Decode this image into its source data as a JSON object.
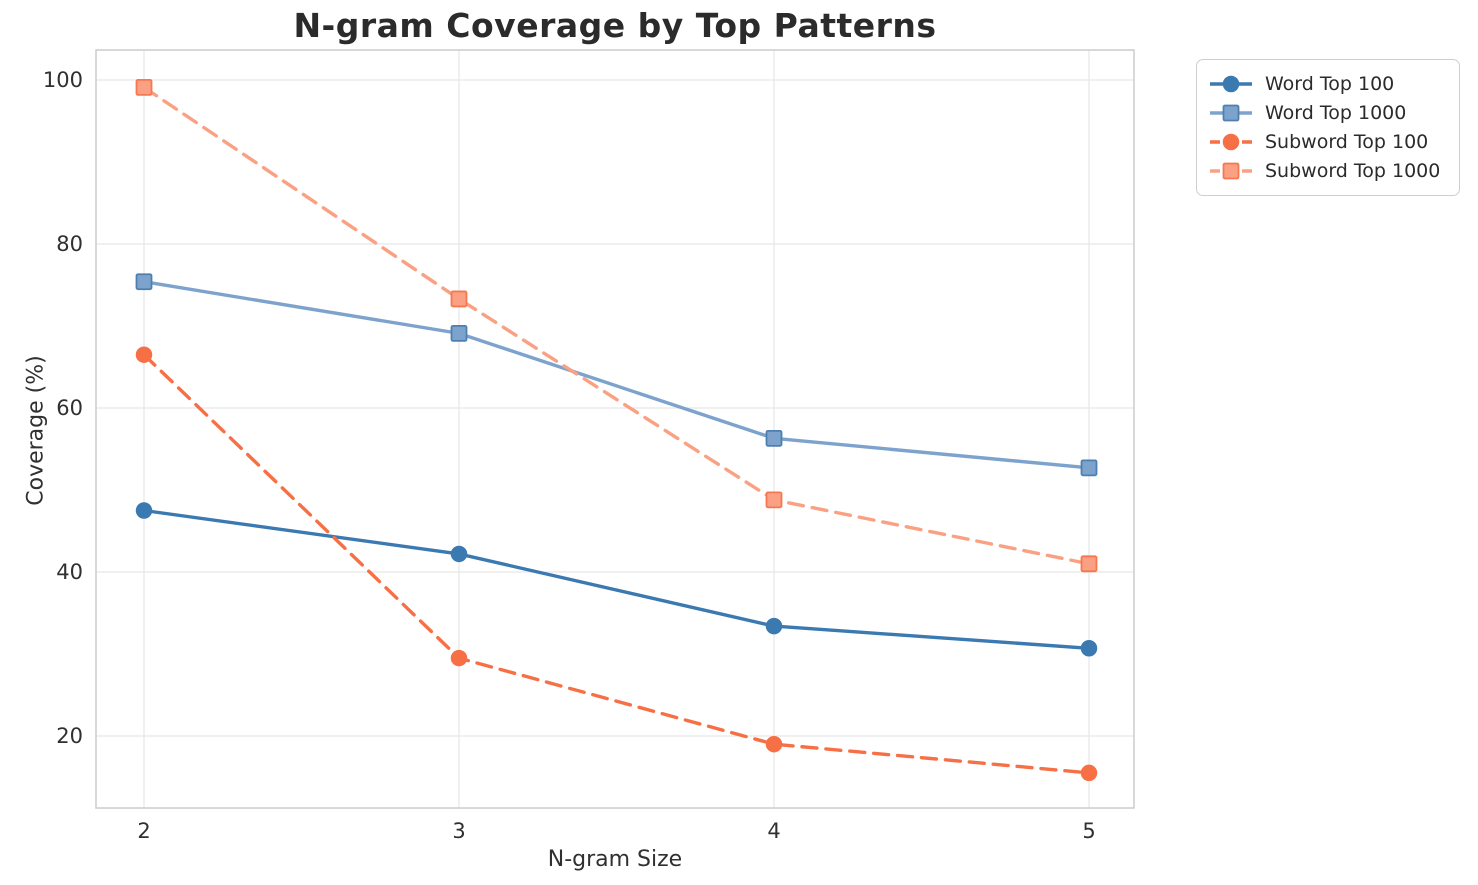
{
  "figure": {
    "title": "N-gram Coverage by Top Patterns",
    "xlabel": "N-gram Size",
    "ylabel": "Coverage (%)"
  },
  "chart_data": {
    "type": "line",
    "title": "N-gram Coverage by Top Patterns",
    "xlabel": "N-gram Size",
    "ylabel": "Coverage (%)",
    "x": [
      2,
      3,
      4,
      5
    ],
    "xtick_labels": [
      "2",
      "3",
      "4",
      "5"
    ],
    "yticks": [
      20,
      40,
      60,
      80,
      100
    ],
    "ylim": [
      11.2,
      103.7
    ],
    "xlim": [
      1.85,
      5.15
    ],
    "grid": true,
    "legend_position": "outside-upper-right",
    "series": [
      {
        "name": "Word Top 100",
        "values": [
          47.5,
          42.2,
          33.4,
          30.7
        ],
        "color": "#3b79b1",
        "edge": "#3b79b1",
        "marker": "circle",
        "dash": "solid"
      },
      {
        "name": "Word Top 1000",
        "values": [
          75.4,
          69.1,
          56.3,
          52.7
        ],
        "color": "#7da3cd",
        "edge": "#4d80b0",
        "marker": "square",
        "dash": "solid"
      },
      {
        "name": "Subword Top 100",
        "values": [
          66.5,
          29.5,
          19.0,
          15.5
        ],
        "color": "#f76f45",
        "edge": "#f76f45",
        "marker": "circle",
        "dash": "dashed"
      },
      {
        "name": "Subword Top 1000",
        "values": [
          99.1,
          73.3,
          48.8,
          41.0
        ],
        "color": "#faa083",
        "edge": "#f8774e",
        "marker": "square",
        "dash": "dashed"
      }
    ]
  },
  "style": {
    "grid_color": "#e7e7e7",
    "spine_color": "#cccccc",
    "tick_text_color": "#303030",
    "title_color": "#2b2b2b"
  }
}
